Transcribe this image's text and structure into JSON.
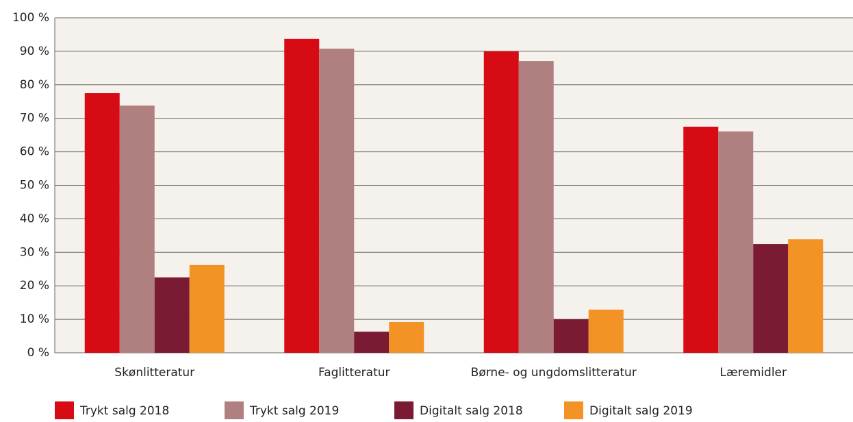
{
  "chart_data": {
    "type": "bar",
    "categories": [
      "Skønlitteratur",
      "Faglitteratur",
      "Børne- og ungdomslitteratur",
      "Læremidler"
    ],
    "series": [
      {
        "name": "Trykt salg 2018",
        "color": "#d70b14",
        "values": [
          77.5,
          93.7,
          90.0,
          67.5
        ]
      },
      {
        "name": "Trykt salg 2019",
        "color": "#b08080",
        "values": [
          73.8,
          90.8,
          87.1,
          66.1
        ]
      },
      {
        "name": "Digitalt salg 2018",
        "color": "#7a1a33",
        "values": [
          22.5,
          6.3,
          10.0,
          32.5
        ]
      },
      {
        "name": "Digitalt salg 2019",
        "color": "#f39325",
        "values": [
          26.2,
          9.2,
          12.9,
          33.9
        ]
      }
    ],
    "ylim": [
      0,
      100
    ],
    "yticks": [
      {
        "value": 0,
        "label": "0 %"
      },
      {
        "value": 10,
        "label": "10 %"
      },
      {
        "value": 20,
        "label": "20 %"
      },
      {
        "value": 30,
        "label": "30 %"
      },
      {
        "value": 40,
        "label": "40 %"
      },
      {
        "value": 50,
        "label": "50 %"
      },
      {
        "value": 60,
        "label": "60 %"
      },
      {
        "value": 70,
        "label": "70 %"
      },
      {
        "value": 80,
        "label": "80 %"
      },
      {
        "value": 90,
        "label": "90 %"
      },
      {
        "value": 100,
        "label": "100 %"
      }
    ],
    "grid": true
  }
}
